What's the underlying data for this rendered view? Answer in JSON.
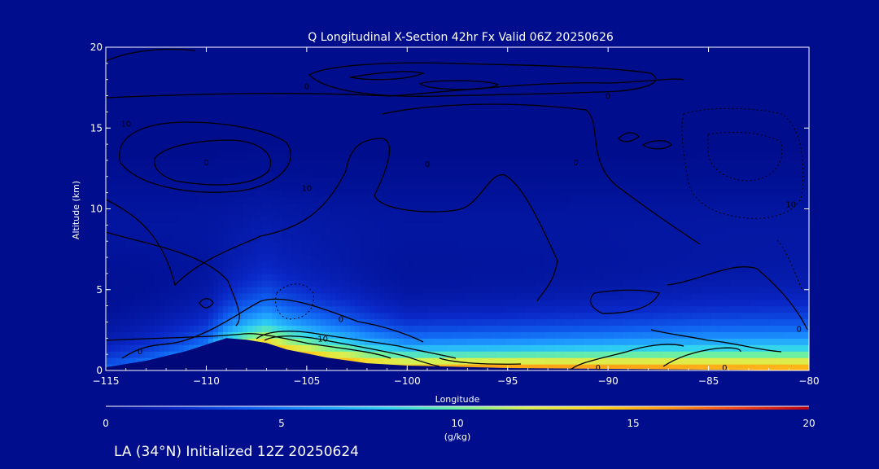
{
  "chart_data": {
    "type": "heatmap",
    "title": "Q Longitudinal X-Section 42hr  Fx Valid 06Z 20250626",
    "xlabel": "Longitude",
    "ylabel": "Altitude (km)",
    "xlim": [
      -115,
      -80
    ],
    "ylim": [
      0,
      20
    ],
    "x_ticks": [
      -115,
      -110,
      -105,
      -100,
      -95,
      -90,
      -85,
      -80
    ],
    "x_tick_labels": [
      "−115",
      "−110",
      "−105",
      "−100",
      "−95",
      "−90",
      "−85",
      "−80"
    ],
    "y_ticks": [
      0,
      5,
      10,
      15,
      20
    ],
    "y_tick_labels": [
      "0",
      "5",
      "10",
      "15",
      "20"
    ],
    "colorbar": {
      "min": 0,
      "max": 20,
      "ticks": [
        0,
        5,
        10,
        15,
        20
      ],
      "tick_labels": [
        "0",
        "5",
        "10",
        "15",
        "20"
      ],
      "label": "(g/kg)",
      "colors": [
        "#000d8c",
        "#0a28c8",
        "#0f5ff0",
        "#1e9bff",
        "#30d2f0",
        "#6ef0a0",
        "#d8f050",
        "#ffd21e",
        "#ff9614",
        "#f0461e",
        "#b40014"
      ]
    },
    "terrain": [
      [
        -115,
        0.2
      ],
      [
        -113,
        0.6
      ],
      [
        -111,
        1.2
      ],
      [
        -109,
        2.0
      ],
      [
        -108,
        1.9
      ],
      [
        -107,
        1.7
      ],
      [
        -106,
        1.3
      ],
      [
        -104,
        0.8
      ],
      [
        -102,
        0.45
      ],
      [
        -100,
        0.3
      ],
      [
        -95,
        0.15
      ],
      [
        -90,
        0.1
      ],
      [
        -85,
        0.05
      ],
      [
        -80,
        0.0
      ]
    ],
    "moisture_profile": [
      {
        "lon": -115,
        "surface_q": 4.0,
        "depth_km": 4.0
      },
      {
        "lon": -110,
        "surface_q": 5.0,
        "depth_km": 4.8
      },
      {
        "lon": -107,
        "surface_q": 14.0,
        "depth_km": 5.8
      },
      {
        "lon": -103,
        "surface_q": 14.5,
        "depth_km": 5.0
      },
      {
        "lon": -100,
        "surface_q": 14.5,
        "depth_km": 4.0
      },
      {
        "lon": -95,
        "surface_q": 16.0,
        "depth_km": 4.2
      },
      {
        "lon": -90,
        "surface_q": 16.5,
        "depth_km": 4.5
      },
      {
        "lon": -85,
        "surface_q": 16.5,
        "depth_km": 5.0
      },
      {
        "lon": -80,
        "surface_q": 16.5,
        "depth_km": 5.2
      }
    ],
    "contour_labels": [
      {
        "lon": -105,
        "alt": 17.6,
        "text": "0"
      },
      {
        "lon": -114,
        "alt": 15.3,
        "text": "10"
      },
      {
        "lon": -110,
        "alt": 12.9,
        "text": "0"
      },
      {
        "lon": -105,
        "alt": 11.3,
        "text": "10"
      },
      {
        "lon": -99,
        "alt": 12.8,
        "text": "0"
      },
      {
        "lon": -91.6,
        "alt": 12.9,
        "text": "0"
      },
      {
        "lon": -90,
        "alt": 17.0,
        "text": "0"
      },
      {
        "lon": -80.9,
        "alt": 10.3,
        "text": "10"
      },
      {
        "lon": -103.3,
        "alt": 3.2,
        "text": "0"
      },
      {
        "lon": -104.2,
        "alt": 2.0,
        "text": "10"
      },
      {
        "lon": -113.3,
        "alt": 1.2,
        "text": "0"
      },
      {
        "lon": -90.5,
        "alt": 0.2,
        "text": "0"
      },
      {
        "lon": -84.2,
        "alt": 0.2,
        "text": "0"
      },
      {
        "lon": -80.5,
        "alt": 2.6,
        "text": "0"
      }
    ]
  },
  "footer": {
    "caption": "LA (34°N) Initialized 12Z 20250624"
  },
  "colors": {
    "background": "#000d8c",
    "contour": "#000000",
    "text": "#ffffff"
  }
}
